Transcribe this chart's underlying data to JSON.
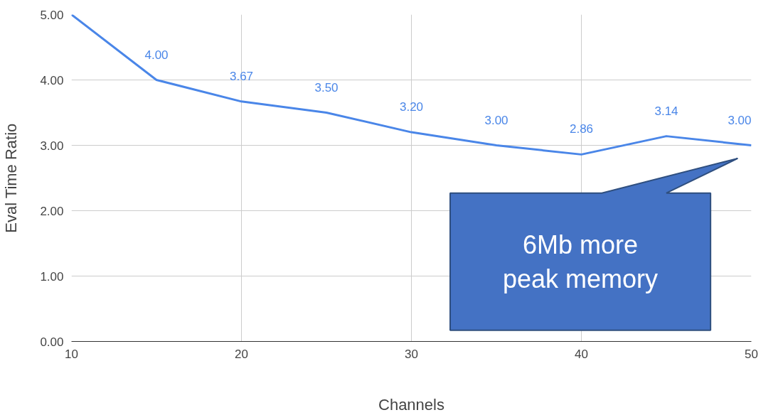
{
  "chart_data": {
    "type": "line",
    "xlabel": "Channels",
    "ylabel": "Eval Time Ratio",
    "x": [
      10,
      15,
      20,
      25,
      30,
      35,
      40,
      45,
      50
    ],
    "series": [
      {
        "color": "#4a86e8",
        "values": [
          5.0,
          4.0,
          3.67,
          3.5,
          3.2,
          3.0,
          2.86,
          3.14,
          3.0
        ],
        "value_labels": [
          null,
          "4.00",
          "3.67",
          "3.50",
          "3.20",
          "3.00",
          "2.86",
          "3.14",
          "3.00"
        ]
      }
    ],
    "xlim": [
      10,
      50
    ],
    "ylim": [
      0,
      5
    ],
    "xticks": [
      10,
      20,
      30,
      40,
      50
    ],
    "yticks": [
      {
        "value": 0,
        "label": "0.00"
      },
      {
        "value": 1,
        "label": "1.00"
      },
      {
        "value": 2,
        "label": "2.00"
      },
      {
        "value": 3,
        "label": "3.00"
      },
      {
        "value": 4,
        "label": "4.00"
      },
      {
        "value": 5,
        "label": "5.00"
      }
    ],
    "grid": true,
    "marker": "none",
    "line_style": "solid",
    "annotations": [
      "6Mb more\npeak memory"
    ]
  }
}
